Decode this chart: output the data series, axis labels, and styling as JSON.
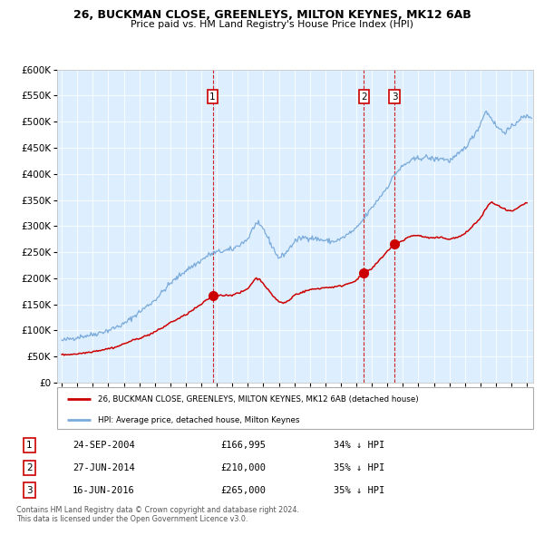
{
  "title": "26, BUCKMAN CLOSE, GREENLEYS, MILTON KEYNES, MK12 6AB",
  "subtitle": "Price paid vs. HM Land Registry's House Price Index (HPI)",
  "red_label": "26, BUCKMAN CLOSE, GREENLEYS, MILTON KEYNES, MK12 6AB (detached house)",
  "blue_label": "HPI: Average price, detached house, Milton Keynes",
  "red_color": "#cc0000",
  "blue_color": "#7aabda",
  "bg_color": "#ddeeff",
  "sale_points": [
    {
      "date_num": 2004.73,
      "price": 166995,
      "label": "1"
    },
    {
      "date_num": 2014.49,
      "price": 210000,
      "label": "2"
    },
    {
      "date_num": 2016.46,
      "price": 265000,
      "label": "3"
    }
  ],
  "sale_table": [
    {
      "num": "1",
      "date": "24-SEP-2004",
      "price": "£166,995",
      "hpi": "34% ↓ HPI"
    },
    {
      "num": "2",
      "date": "27-JUN-2014",
      "price": "£210,000",
      "hpi": "35% ↓ HPI"
    },
    {
      "num": "3",
      "date": "16-JUN-2016",
      "price": "£265,000",
      "hpi": "35% ↓ HPI"
    }
  ],
  "footer": "Contains HM Land Registry data © Crown copyright and database right 2024.\nThis data is licensed under the Open Government Licence v3.0.",
  "ylim": [
    0,
    600000
  ],
  "xlim": [
    1994.7,
    2025.4
  ],
  "hpi_anchors": [
    [
      1995.0,
      80000
    ],
    [
      1996.0,
      87000
    ],
    [
      1997.0,
      92000
    ],
    [
      1998.0,
      100000
    ],
    [
      1999.0,
      112000
    ],
    [
      2000.0,
      135000
    ],
    [
      2001.0,
      158000
    ],
    [
      2002.0,
      190000
    ],
    [
      2003.0,
      215000
    ],
    [
      2003.8,
      230000
    ],
    [
      2004.5,
      245000
    ],
    [
      2005.0,
      250000
    ],
    [
      2006.0,
      255000
    ],
    [
      2007.0,
      275000
    ],
    [
      2007.5,
      305000
    ],
    [
      2008.0,
      295000
    ],
    [
      2008.5,
      265000
    ],
    [
      2009.0,
      238000
    ],
    [
      2009.5,
      250000
    ],
    [
      2010.0,
      270000
    ],
    [
      2010.5,
      278000
    ],
    [
      2011.0,
      278000
    ],
    [
      2012.0,
      272000
    ],
    [
      2012.5,
      270000
    ],
    [
      2013.0,
      275000
    ],
    [
      2013.5,
      285000
    ],
    [
      2014.0,
      295000
    ],
    [
      2014.5,
      315000
    ],
    [
      2015.0,
      335000
    ],
    [
      2015.5,
      355000
    ],
    [
      2016.0,
      375000
    ],
    [
      2016.5,
      400000
    ],
    [
      2017.0,
      415000
    ],
    [
      2017.5,
      425000
    ],
    [
      2018.0,
      430000
    ],
    [
      2018.5,
      432000
    ],
    [
      2019.0,
      428000
    ],
    [
      2019.5,
      430000
    ],
    [
      2020.0,
      425000
    ],
    [
      2020.5,
      435000
    ],
    [
      2021.0,
      450000
    ],
    [
      2021.5,
      470000
    ],
    [
      2022.0,
      495000
    ],
    [
      2022.3,
      520000
    ],
    [
      2022.5,
      515000
    ],
    [
      2022.7,
      508000
    ],
    [
      2023.0,
      492000
    ],
    [
      2023.5,
      480000
    ],
    [
      2024.0,
      488000
    ],
    [
      2024.5,
      505000
    ],
    [
      2025.0,
      510000
    ],
    [
      2025.3,
      510000
    ]
  ],
  "red_anchors": [
    [
      1995.0,
      53000
    ],
    [
      1996.0,
      55000
    ],
    [
      1996.5,
      57000
    ],
    [
      1997.5,
      62000
    ],
    [
      1998.5,
      68000
    ],
    [
      1999.5,
      80000
    ],
    [
      2000.5,
      90000
    ],
    [
      2001.0,
      97000
    ],
    [
      2001.5,
      105000
    ],
    [
      2002.0,
      115000
    ],
    [
      2002.5,
      122000
    ],
    [
      2003.0,
      130000
    ],
    [
      2003.5,
      140000
    ],
    [
      2004.0,
      150000
    ],
    [
      2004.73,
      166995
    ],
    [
      2005.0,
      168000
    ],
    [
      2005.5,
      167000
    ],
    [
      2006.0,
      168000
    ],
    [
      2006.5,
      172000
    ],
    [
      2007.0,
      180000
    ],
    [
      2007.5,
      200000
    ],
    [
      2007.8,
      197000
    ],
    [
      2008.0,
      190000
    ],
    [
      2008.5,
      170000
    ],
    [
      2009.0,
      155000
    ],
    [
      2009.3,
      152000
    ],
    [
      2009.7,
      158000
    ],
    [
      2010.0,
      168000
    ],
    [
      2010.5,
      173000
    ],
    [
      2011.0,
      178000
    ],
    [
      2011.5,
      180000
    ],
    [
      2012.0,
      182000
    ],
    [
      2012.5,
      183000
    ],
    [
      2013.0,
      185000
    ],
    [
      2013.5,
      190000
    ],
    [
      2014.0,
      196000
    ],
    [
      2014.49,
      210000
    ],
    [
      2015.0,
      218000
    ],
    [
      2015.5,
      235000
    ],
    [
      2016.0,
      252000
    ],
    [
      2016.46,
      265000
    ],
    [
      2017.0,
      272000
    ],
    [
      2017.3,
      278000
    ],
    [
      2017.7,
      282000
    ],
    [
      2018.0,
      282000
    ],
    [
      2018.5,
      278000
    ],
    [
      2019.0,
      277000
    ],
    [
      2019.5,
      278000
    ],
    [
      2020.0,
      275000
    ],
    [
      2020.5,
      278000
    ],
    [
      2021.0,
      285000
    ],
    [
      2021.5,
      300000
    ],
    [
      2022.0,
      315000
    ],
    [
      2022.3,
      330000
    ],
    [
      2022.5,
      340000
    ],
    [
      2022.7,
      345000
    ],
    [
      2023.0,
      342000
    ],
    [
      2023.3,
      336000
    ],
    [
      2023.7,
      330000
    ],
    [
      2024.0,
      328000
    ],
    [
      2024.3,
      332000
    ],
    [
      2024.7,
      340000
    ],
    [
      2025.0,
      345000
    ]
  ]
}
